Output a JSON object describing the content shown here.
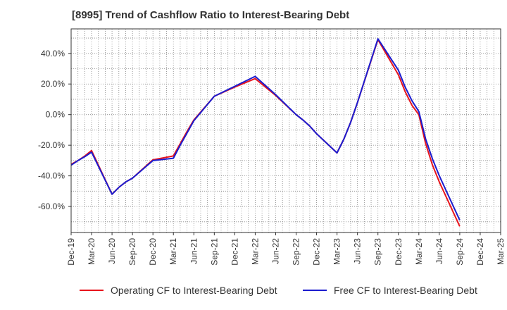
{
  "chart_data": {
    "type": "line",
    "title": "[8995]  Trend of Cashflow Ratio to Interest-Bearing Debt",
    "xlabel": "",
    "ylabel": "",
    "ylim": [
      -77,
      56
    ],
    "yticks": [
      40,
      20,
      0,
      -20,
      -40,
      -60
    ],
    "ytick_labels": [
      "40.0%",
      "20.0%",
      "0.0%",
      "-20.0%",
      "-40.0%",
      "-60.0%"
    ],
    "x_tick_labels": [
      "Dec-19",
      "Mar-20",
      "Jun-20",
      "Sep-20",
      "Dec-20",
      "Mar-21",
      "Jun-21",
      "Sep-21",
      "Dec-21",
      "Mar-22",
      "Jun-22",
      "Sep-22",
      "Dec-22",
      "Mar-23",
      "Jun-23",
      "Sep-23",
      "Dec-23",
      "Mar-24",
      "Jun-24",
      "Sep-24",
      "Dec-24",
      "Mar-25"
    ],
    "grid": true,
    "legend_position": "bottom",
    "series": [
      {
        "name": "Operating CF to Interest-Bearing Debt",
        "color": "#e8141c",
        "points": [
          [
            "Dec-19",
            -32.5
          ],
          [
            "Jan-20",
            -30
          ],
          [
            "Feb-20",
            -27
          ],
          [
            "Mar-20",
            -23.5
          ],
          [
            "Jun-20",
            -52
          ],
          [
            "Jul-20",
            -47.5
          ],
          [
            "Aug-20",
            -44
          ],
          [
            "Sep-20",
            -41.5
          ],
          [
            "Dec-20",
            -29.5
          ],
          [
            "Mar-21",
            -27
          ],
          [
            "Apr-21",
            -19
          ],
          [
            "May-21",
            -11
          ],
          [
            "Jun-21",
            -3.5
          ],
          [
            "Sep-21",
            12
          ],
          [
            "Dec-21",
            18
          ],
          [
            "Mar-22",
            23.5
          ],
          [
            "Jun-22",
            12.5
          ],
          [
            "Sep-22",
            0
          ],
          [
            "Oct-22",
            -3.5
          ],
          [
            "Nov-22",
            -7.5
          ],
          [
            "Dec-22",
            -12.5
          ],
          [
            "Mar-23",
            -25
          ],
          [
            "Apr-23",
            -16
          ],
          [
            "May-23",
            -5
          ],
          [
            "Jun-23",
            8
          ],
          [
            "Sep-23",
            49
          ],
          [
            "Dec-23",
            26
          ],
          [
            "Jan-24",
            15
          ],
          [
            "Feb-24",
            6
          ],
          [
            "Mar-24",
            0
          ],
          [
            "Apr-24",
            -19
          ],
          [
            "May-24",
            -33
          ],
          [
            "Jun-24",
            -44
          ],
          [
            "Sep-24",
            -73
          ]
        ]
      },
      {
        "name": "Free CF to Interest-Bearing Debt",
        "color": "#1c1ccf",
        "points": [
          [
            "Dec-19",
            -33
          ],
          [
            "Jan-20",
            -30
          ],
          [
            "Feb-20",
            -27.5
          ],
          [
            "Mar-20",
            -24.5
          ],
          [
            "Jun-20",
            -52
          ],
          [
            "Jul-20",
            -47.5
          ],
          [
            "Aug-20",
            -44
          ],
          [
            "Sep-20",
            -41.5
          ],
          [
            "Dec-20",
            -30
          ],
          [
            "Mar-21",
            -28.5
          ],
          [
            "Apr-21",
            -20
          ],
          [
            "May-21",
            -12
          ],
          [
            "Jun-21",
            -4
          ],
          [
            "Sep-21",
            12
          ],
          [
            "Dec-21",
            18.5
          ],
          [
            "Mar-22",
            25
          ],
          [
            "Jun-22",
            13
          ],
          [
            "Sep-22",
            0
          ],
          [
            "Oct-22",
            -3.5
          ],
          [
            "Nov-22",
            -7.5
          ],
          [
            "Dec-22",
            -12.5
          ],
          [
            "Mar-23",
            -25
          ],
          [
            "Apr-23",
            -16
          ],
          [
            "May-23",
            -5
          ],
          [
            "Jun-23",
            8
          ],
          [
            "Sep-23",
            49.5
          ],
          [
            "Dec-23",
            29
          ],
          [
            "Jan-24",
            18
          ],
          [
            "Feb-24",
            9
          ],
          [
            "Mar-24",
            2
          ],
          [
            "Apr-24",
            -16
          ],
          [
            "May-24",
            -29
          ],
          [
            "Jun-24",
            -40
          ],
          [
            "Sep-24",
            -69
          ]
        ]
      }
    ]
  }
}
